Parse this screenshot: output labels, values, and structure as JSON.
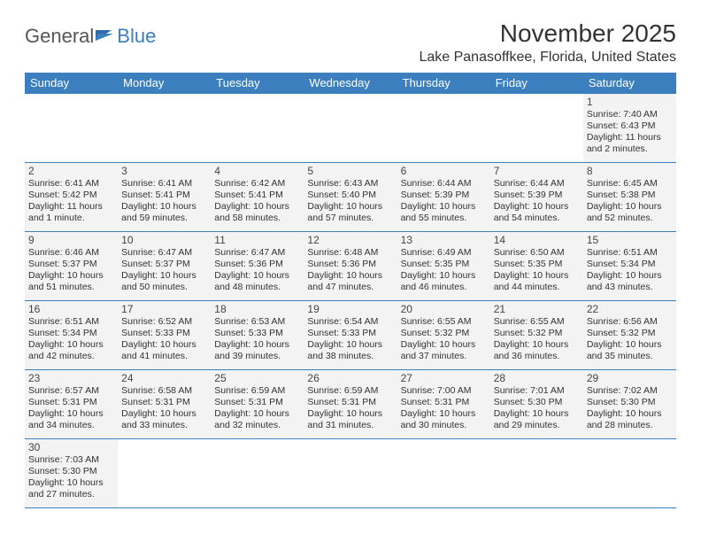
{
  "logo": {
    "text1": "General",
    "text2": "Blue"
  },
  "title": "November 2025",
  "location": "Lake Panasoffkee, Florida, United States",
  "colors": {
    "header_bg": "#3b7fbf",
    "header_text": "#ffffff",
    "cell_bg": "#f3f3f3",
    "border": "#3b7fbf",
    "page_bg": "#ffffff",
    "text": "#333333"
  },
  "weekdays": [
    "Sunday",
    "Monday",
    "Tuesday",
    "Wednesday",
    "Thursday",
    "Friday",
    "Saturday"
  ],
  "weeks": [
    [
      {
        "empty": true
      },
      {
        "empty": true
      },
      {
        "empty": true
      },
      {
        "empty": true
      },
      {
        "empty": true
      },
      {
        "empty": true
      },
      {
        "day": "1",
        "sunrise": "Sunrise: 7:40 AM",
        "sunset": "Sunset: 6:43 PM",
        "daylight": "Daylight: 11 hours and 2 minutes."
      }
    ],
    [
      {
        "day": "2",
        "sunrise": "Sunrise: 6:41 AM",
        "sunset": "Sunset: 5:42 PM",
        "daylight": "Daylight: 11 hours and 1 minute."
      },
      {
        "day": "3",
        "sunrise": "Sunrise: 6:41 AM",
        "sunset": "Sunset: 5:41 PM",
        "daylight": "Daylight: 10 hours and 59 minutes."
      },
      {
        "day": "4",
        "sunrise": "Sunrise: 6:42 AM",
        "sunset": "Sunset: 5:41 PM",
        "daylight": "Daylight: 10 hours and 58 minutes."
      },
      {
        "day": "5",
        "sunrise": "Sunrise: 6:43 AM",
        "sunset": "Sunset: 5:40 PM",
        "daylight": "Daylight: 10 hours and 57 minutes."
      },
      {
        "day": "6",
        "sunrise": "Sunrise: 6:44 AM",
        "sunset": "Sunset: 5:39 PM",
        "daylight": "Daylight: 10 hours and 55 minutes."
      },
      {
        "day": "7",
        "sunrise": "Sunrise: 6:44 AM",
        "sunset": "Sunset: 5:39 PM",
        "daylight": "Daylight: 10 hours and 54 minutes."
      },
      {
        "day": "8",
        "sunrise": "Sunrise: 6:45 AM",
        "sunset": "Sunset: 5:38 PM",
        "daylight": "Daylight: 10 hours and 52 minutes."
      }
    ],
    [
      {
        "day": "9",
        "sunrise": "Sunrise: 6:46 AM",
        "sunset": "Sunset: 5:37 PM",
        "daylight": "Daylight: 10 hours and 51 minutes."
      },
      {
        "day": "10",
        "sunrise": "Sunrise: 6:47 AM",
        "sunset": "Sunset: 5:37 PM",
        "daylight": "Daylight: 10 hours and 50 minutes."
      },
      {
        "day": "11",
        "sunrise": "Sunrise: 6:47 AM",
        "sunset": "Sunset: 5:36 PM",
        "daylight": "Daylight: 10 hours and 48 minutes."
      },
      {
        "day": "12",
        "sunrise": "Sunrise: 6:48 AM",
        "sunset": "Sunset: 5:36 PM",
        "daylight": "Daylight: 10 hours and 47 minutes."
      },
      {
        "day": "13",
        "sunrise": "Sunrise: 6:49 AM",
        "sunset": "Sunset: 5:35 PM",
        "daylight": "Daylight: 10 hours and 46 minutes."
      },
      {
        "day": "14",
        "sunrise": "Sunrise: 6:50 AM",
        "sunset": "Sunset: 5:35 PM",
        "daylight": "Daylight: 10 hours and 44 minutes."
      },
      {
        "day": "15",
        "sunrise": "Sunrise: 6:51 AM",
        "sunset": "Sunset: 5:34 PM",
        "daylight": "Daylight: 10 hours and 43 minutes."
      }
    ],
    [
      {
        "day": "16",
        "sunrise": "Sunrise: 6:51 AM",
        "sunset": "Sunset: 5:34 PM",
        "daylight": "Daylight: 10 hours and 42 minutes."
      },
      {
        "day": "17",
        "sunrise": "Sunrise: 6:52 AM",
        "sunset": "Sunset: 5:33 PM",
        "daylight": "Daylight: 10 hours and 41 minutes."
      },
      {
        "day": "18",
        "sunrise": "Sunrise: 6:53 AM",
        "sunset": "Sunset: 5:33 PM",
        "daylight": "Daylight: 10 hours and 39 minutes."
      },
      {
        "day": "19",
        "sunrise": "Sunrise: 6:54 AM",
        "sunset": "Sunset: 5:33 PM",
        "daylight": "Daylight: 10 hours and 38 minutes."
      },
      {
        "day": "20",
        "sunrise": "Sunrise: 6:55 AM",
        "sunset": "Sunset: 5:32 PM",
        "daylight": "Daylight: 10 hours and 37 minutes."
      },
      {
        "day": "21",
        "sunrise": "Sunrise: 6:55 AM",
        "sunset": "Sunset: 5:32 PM",
        "daylight": "Daylight: 10 hours and 36 minutes."
      },
      {
        "day": "22",
        "sunrise": "Sunrise: 6:56 AM",
        "sunset": "Sunset: 5:32 PM",
        "daylight": "Daylight: 10 hours and 35 minutes."
      }
    ],
    [
      {
        "day": "23",
        "sunrise": "Sunrise: 6:57 AM",
        "sunset": "Sunset: 5:31 PM",
        "daylight": "Daylight: 10 hours and 34 minutes."
      },
      {
        "day": "24",
        "sunrise": "Sunrise: 6:58 AM",
        "sunset": "Sunset: 5:31 PM",
        "daylight": "Daylight: 10 hours and 33 minutes."
      },
      {
        "day": "25",
        "sunrise": "Sunrise: 6:59 AM",
        "sunset": "Sunset: 5:31 PM",
        "daylight": "Daylight: 10 hours and 32 minutes."
      },
      {
        "day": "26",
        "sunrise": "Sunrise: 6:59 AM",
        "sunset": "Sunset: 5:31 PM",
        "daylight": "Daylight: 10 hours and 31 minutes."
      },
      {
        "day": "27",
        "sunrise": "Sunrise: 7:00 AM",
        "sunset": "Sunset: 5:31 PM",
        "daylight": "Daylight: 10 hours and 30 minutes."
      },
      {
        "day": "28",
        "sunrise": "Sunrise: 7:01 AM",
        "sunset": "Sunset: 5:30 PM",
        "daylight": "Daylight: 10 hours and 29 minutes."
      },
      {
        "day": "29",
        "sunrise": "Sunrise: 7:02 AM",
        "sunset": "Sunset: 5:30 PM",
        "daylight": "Daylight: 10 hours and 28 minutes."
      }
    ],
    [
      {
        "day": "30",
        "sunrise": "Sunrise: 7:03 AM",
        "sunset": "Sunset: 5:30 PM",
        "daylight": "Daylight: 10 hours and 27 minutes."
      },
      {
        "empty": true
      },
      {
        "empty": true
      },
      {
        "empty": true
      },
      {
        "empty": true
      },
      {
        "empty": true
      },
      {
        "empty": true
      }
    ]
  ]
}
